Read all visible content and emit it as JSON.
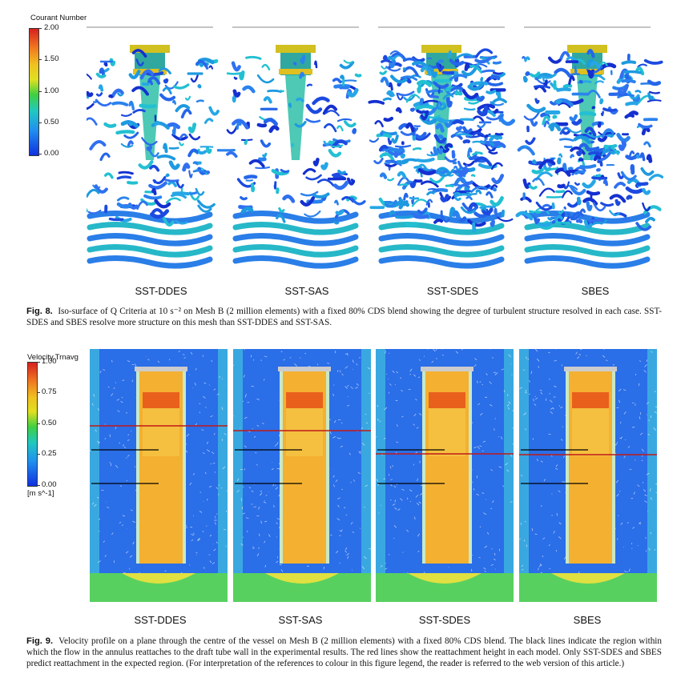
{
  "fig8": {
    "colorbar": {
      "title": "Courant Number",
      "ticks": [
        "2.00",
        "1.50",
        "1.00",
        "0.50",
        "0.00"
      ],
      "colors": [
        "#d62020",
        "#f0a020",
        "#e8e020",
        "#30c030",
        "#20c0d0",
        "#1040e0"
      ]
    },
    "panels": [
      "SST-DDES",
      "SST-SAS",
      "SST-SDES",
      "SBES"
    ],
    "caption_label": "Fig. 8.",
    "caption_text": "Iso-surface of Q Criteria at 10 s⁻² on Mesh B (2 million elements) with a fixed 80% CDS blend showing the degree of turbulent structure resolved in each case. SST-SDES and SBES resolve more structure on this mesh than SST-DDES and SST-SAS."
  },
  "fig9": {
    "colorbar": {
      "title": "Velocity.Trnavg",
      "ticks": [
        "1.00",
        "0.75",
        "0.50",
        "0.25",
        "0.00"
      ],
      "unit": "[m s^-1]",
      "colors": [
        "#d62020",
        "#f0a020",
        "#e8e020",
        "#30c030",
        "#20c0d0",
        "#1040e0"
      ]
    },
    "panels": [
      "SST-DDES",
      "SST-SAS",
      "SST-SDES",
      "SBES"
    ],
    "caption_label": "Fig. 9.",
    "caption_text": "Velocity profile on a plane through the centre of the vessel on Mesh B (2 million elements) with a fixed 80% CDS blend. The black lines indicate the region within which the flow in the annulus reattaches to the draft tube wall in the experimental results. The red lines show the reattachment height in each model. Only SST-SDES and SBES predict reattachment in the expected region. (For interpretation of the references to colour in this figure legend, the reader is referred to the web version of this article.)"
  }
}
